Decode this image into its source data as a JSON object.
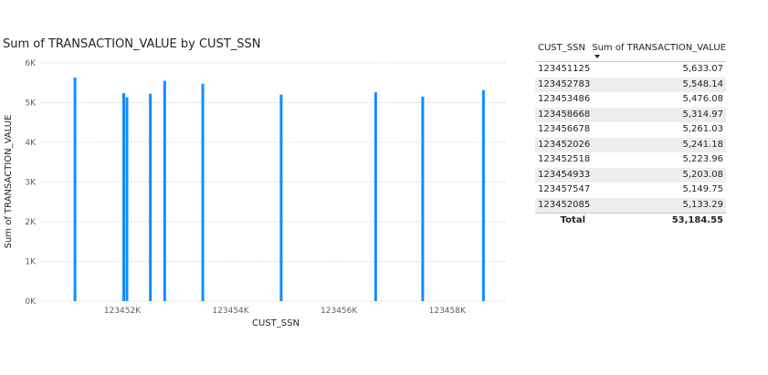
{
  "chart_data": {
    "type": "bar",
    "title": "Sum of TRANSACTION_VALUE by CUST_SSN",
    "xlabel": "CUST_SSN",
    "ylabel": "Sum of TRANSACTION_VALUE",
    "xlim": [
      123450500,
      123459100
    ],
    "ylim": [
      0,
      6000
    ],
    "y_ticks": [
      0,
      1000,
      2000,
      3000,
      4000,
      5000,
      6000
    ],
    "y_tick_labels": [
      "0K",
      "1K",
      "2K",
      "3K",
      "4K",
      "5K",
      "6K"
    ],
    "x_ticks": [
      123452000,
      123454000,
      123456000,
      123458000
    ],
    "x_tick_labels": [
      "123452K",
      "123454K",
      "123456K",
      "123458K"
    ],
    "grid": true,
    "bar_color": "#118DFF",
    "x": [
      123451125,
      123452026,
      123452085,
      123452518,
      123452783,
      123453486,
      123454933,
      123456678,
      123457547,
      123458668
    ],
    "values": [
      5633.07,
      5241.18,
      5133.29,
      5223.96,
      5548.14,
      5476.08,
      5203.08,
      5261.03,
      5149.75,
      5314.97
    ]
  },
  "table": {
    "col1_header": "CUST_SSN",
    "col2_header": "Sum of TRANSACTION_VALUE",
    "rows": [
      {
        "ssn": "123451125",
        "value": "5,633.07"
      },
      {
        "ssn": "123452783",
        "value": "5,548.14"
      },
      {
        "ssn": "123453486",
        "value": "5,476.08"
      },
      {
        "ssn": "123458668",
        "value": "5,314.97"
      },
      {
        "ssn": "123456678",
        "value": "5,261.03"
      },
      {
        "ssn": "123452026",
        "value": "5,241.18"
      },
      {
        "ssn": "123452518",
        "value": "5,223.96"
      },
      {
        "ssn": "123454933",
        "value": "5,203.08"
      },
      {
        "ssn": "123457547",
        "value": "5,149.75"
      },
      {
        "ssn": "123452085",
        "value": "5,133.29"
      }
    ],
    "total_label": "Total",
    "total_value": "53,184.55"
  }
}
